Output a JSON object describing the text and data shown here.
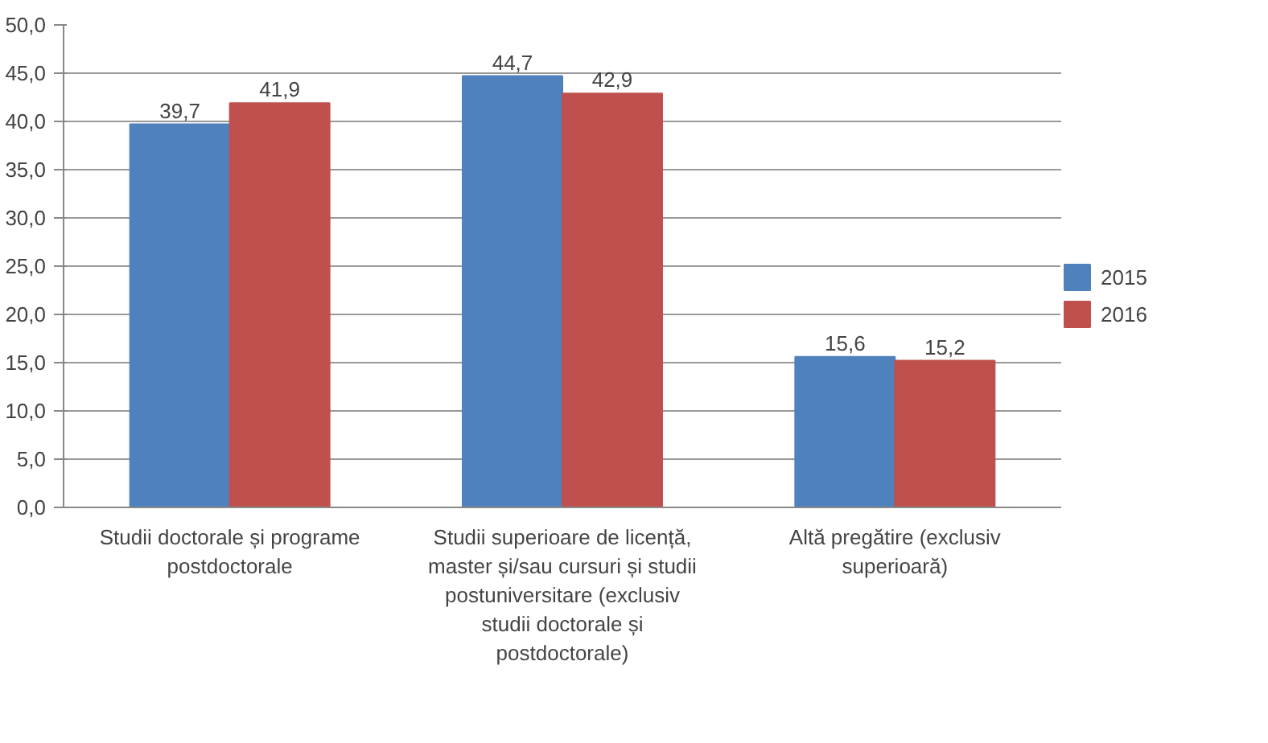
{
  "chart_data": {
    "type": "bar",
    "categories": [
      "Studii doctorale și programe postdoctorale",
      "Studii superioare de licență, master și/sau cursuri și studii postuniversitare (exclusiv studii doctorale și postdoctorale)",
      "Altă pregătire (exclusiv superioară)"
    ],
    "series": [
      {
        "name": "2015",
        "color": "#4f81bd",
        "values": [
          39.7,
          44.7,
          15.6
        ],
        "value_labels": [
          "39,7",
          "44,7",
          "15,6"
        ]
      },
      {
        "name": "2016",
        "color": "#c0504d",
        "values": [
          41.9,
          42.9,
          15.2
        ],
        "value_labels": [
          "41,9",
          "42,9",
          "15,2"
        ]
      }
    ],
    "ylim": [
      0,
      50
    ],
    "yticks": [
      {
        "value": 0,
        "label": "0,0"
      },
      {
        "value": 5,
        "label": "5,0"
      },
      {
        "value": 10,
        "label": "10,0"
      },
      {
        "value": 15,
        "label": "15,0"
      },
      {
        "value": 20,
        "label": "20,0"
      },
      {
        "value": 25,
        "label": "25,0"
      },
      {
        "value": 30,
        "label": "30,0"
      },
      {
        "value": 35,
        "label": "35,0"
      },
      {
        "value": 40,
        "label": "40,0"
      },
      {
        "value": 45,
        "label": "45,0"
      },
      {
        "value": 50,
        "label": "50,0"
      }
    ],
    "grid": "y",
    "legend": "right"
  }
}
